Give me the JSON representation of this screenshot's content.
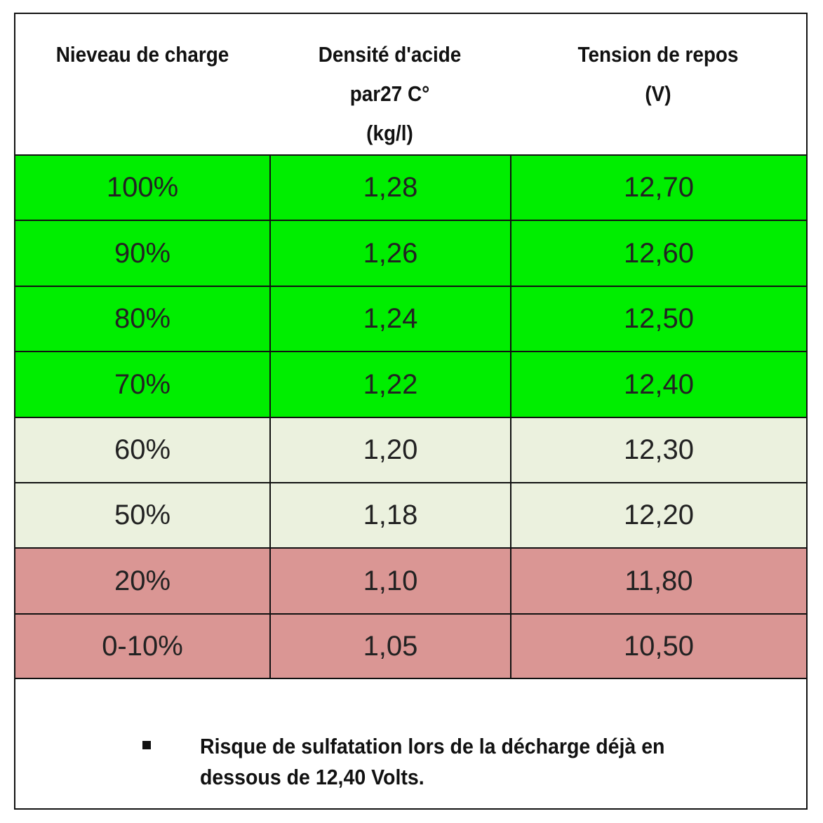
{
  "table": {
    "header": [
      [
        "Nieveau de charge"
      ],
      [
        "Densité d'acide",
        "par27 C°",
        "(kg/l)"
      ],
      [
        "Tension de repos",
        "(V)"
      ]
    ],
    "rows": [
      [
        "100%",
        "1,28",
        "12,70"
      ],
      [
        "90%",
        "1,26",
        "12,60"
      ],
      [
        "80%",
        "1,24",
        "12,50"
      ],
      [
        "70%",
        "1,22",
        "12,40"
      ],
      [
        "60%",
        "1,20",
        "12,30"
      ],
      [
        "50%",
        "1,18",
        "12,20"
      ],
      [
        "20%",
        "1,10",
        "11,80"
      ],
      [
        "0-10%",
        "1,05",
        "10,50"
      ]
    ]
  },
  "note": {
    "lines": [
      "Risque de sulfatation lors de la décharge déjà en",
      "dessous de 12,40 Volts."
    ]
  }
}
